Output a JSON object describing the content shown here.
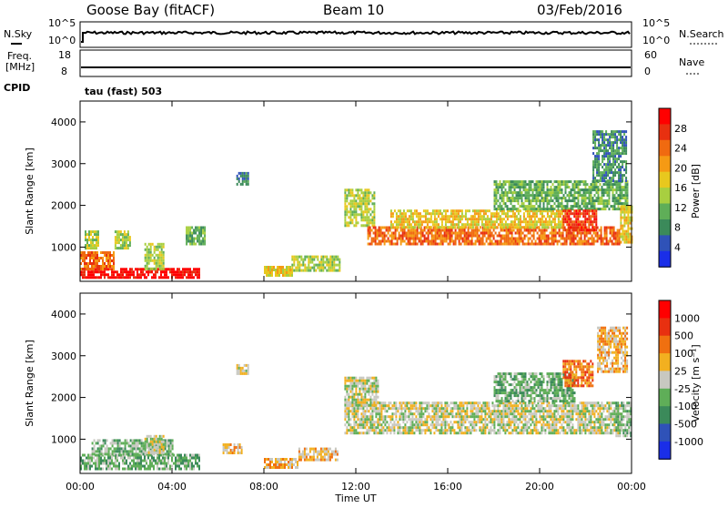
{
  "header": {
    "station": "Goose Bay (fitACF)",
    "beam": "Beam 10",
    "date": "03/Feb/2016"
  },
  "top_panels": {
    "nsky_label": "N.Sky",
    "nsky_ticks": [
      "10^5",
      "10^0"
    ],
    "nsearch_label": "N.Search",
    "nsearch_ticks": [
      "10^5",
      "10^0"
    ],
    "freq_label_1": "Freq.",
    "freq_label_2": "[MHz]",
    "freq_ticks": [
      "18",
      "8"
    ],
    "nave_label": "Nave",
    "nave_ticks": [
      "60",
      "0"
    ],
    "cpid_label": "CPID",
    "cpid_value": "tau (fast) 503"
  },
  "chart_data": [
    {
      "type": "heatmap",
      "title": "Power",
      "xlabel": "",
      "ylabel": "Slant Range [km]",
      "xticks": [
        "00:00",
        "04:00",
        "08:00",
        "12:00",
        "16:00",
        "20:00",
        "00:00"
      ],
      "yticks": [
        "1000",
        "2000",
        "3000",
        "4000"
      ],
      "ylim": [
        180,
        4500
      ],
      "xlim_hours": [
        0,
        24
      ],
      "colorbar_label": "Power [dB]",
      "colorbar_ticks": [
        "4",
        "8",
        "12",
        "16",
        "20",
        "24",
        "28"
      ],
      "colorbar_colors": [
        "#1a2ee8",
        "#2f52b8",
        "#3b8a5a",
        "#5fae58",
        "#a8cf40",
        "#e8c81e",
        "#f59a14",
        "#f06a10",
        "#e83010",
        "#ff0000"
      ],
      "regions": [
        {
          "t0": 0.0,
          "t1": 5.2,
          "r0": 300,
          "r1": 500,
          "level": 9
        },
        {
          "t0": 0.0,
          "t1": 1.5,
          "r0": 500,
          "r1": 900,
          "level": 7
        },
        {
          "t0": 0.2,
          "t1": 0.8,
          "r0": 1000,
          "r1": 1400,
          "level": 4
        },
        {
          "t0": 1.5,
          "t1": 2.2,
          "r0": 1000,
          "r1": 1400,
          "level": 4
        },
        {
          "t0": 2.8,
          "t1": 3.6,
          "r0": 500,
          "r1": 1100,
          "level": 4
        },
        {
          "t0": 4.6,
          "t1": 5.4,
          "r0": 1100,
          "r1": 1500,
          "level": 3
        },
        {
          "t0": 6.8,
          "t1": 7.3,
          "r0": 2500,
          "r1": 2800,
          "level": 2
        },
        {
          "t0": 8.0,
          "t1": 9.2,
          "r0": 350,
          "r1": 550,
          "level": 5
        },
        {
          "t0": 9.2,
          "t1": 11.3,
          "r0": 450,
          "r1": 800,
          "level": 4
        },
        {
          "t0": 11.5,
          "t1": 12.8,
          "r0": 1500,
          "r1": 2400,
          "level": 4
        },
        {
          "t0": 12.5,
          "t1": 23.5,
          "r0": 1100,
          "r1": 1500,
          "level": 7
        },
        {
          "t0": 13.5,
          "t1": 21.0,
          "r0": 1500,
          "r1": 1900,
          "level": 5
        },
        {
          "t0": 18.0,
          "t1": 23.8,
          "r0": 1900,
          "r1": 2600,
          "level": 3
        },
        {
          "t0": 21.0,
          "t1": 22.5,
          "r0": 1400,
          "r1": 1900,
          "level": 8
        },
        {
          "t0": 22.3,
          "t1": 23.8,
          "r0": 2600,
          "r1": 3800,
          "level": 2
        },
        {
          "t0": 23.5,
          "t1": 24.0,
          "r0": 1100,
          "r1": 2000,
          "level": 5
        }
      ]
    },
    {
      "type": "heatmap",
      "title": "Velocity",
      "xlabel": "Time UT",
      "ylabel": "Slant Range [km]",
      "xticks": [
        "00:00",
        "04:00",
        "08:00",
        "12:00",
        "16:00",
        "20:00",
        "00:00"
      ],
      "yticks": [
        "1000",
        "2000",
        "3000",
        "4000"
      ],
      "ylim": [
        180,
        4500
      ],
      "xlim_hours": [
        0,
        24
      ],
      "colorbar_label": "Velocity [m s⁻¹]",
      "colorbar_ticks": [
        "1000",
        "500",
        "100",
        "25",
        "-25",
        "-100",
        "-500",
        "-1000"
      ],
      "colorbar_colors": [
        "#1a2ee8",
        "#2f52b8",
        "#3b8a5a",
        "#5fae58",
        "#c8c8c0",
        "#f2b020",
        "#f07010",
        "#e83010",
        "#ff0000"
      ],
      "regions": [
        {
          "t0": 0.0,
          "t1": 5.2,
          "r0": 300,
          "r1": 650,
          "level": 3
        },
        {
          "t0": 0.5,
          "t1": 4.0,
          "r0": 650,
          "r1": 1000,
          "level": 3
        },
        {
          "t0": 2.8,
          "t1": 3.6,
          "r0": 700,
          "r1": 1100,
          "level": 4
        },
        {
          "t0": 6.8,
          "t1": 7.3,
          "r0": 2550,
          "r1": 2800,
          "level": 4
        },
        {
          "t0": 6.2,
          "t1": 7.0,
          "r0": 700,
          "r1": 900,
          "level": 5
        },
        {
          "t0": 8.0,
          "t1": 9.5,
          "r0": 350,
          "r1": 550,
          "level": 5
        },
        {
          "t0": 9.5,
          "t1": 11.2,
          "r0": 500,
          "r1": 800,
          "level": 5
        },
        {
          "t0": 11.5,
          "t1": 23.5,
          "r0": 1150,
          "r1": 1900,
          "level": 4
        },
        {
          "t0": 11.5,
          "t1": 13.0,
          "r0": 1800,
          "r1": 2500,
          "level": 4
        },
        {
          "t0": 18.0,
          "t1": 21.5,
          "r0": 1900,
          "r1": 2600,
          "level": 3
        },
        {
          "t0": 21.0,
          "t1": 22.3,
          "r0": 2300,
          "r1": 2900,
          "level": 6
        },
        {
          "t0": 22.5,
          "t1": 23.8,
          "r0": 2600,
          "r1": 3700,
          "level": 5
        },
        {
          "t0": 23.3,
          "t1": 24.0,
          "r0": 1100,
          "r1": 1900,
          "level": 3
        }
      ]
    }
  ]
}
